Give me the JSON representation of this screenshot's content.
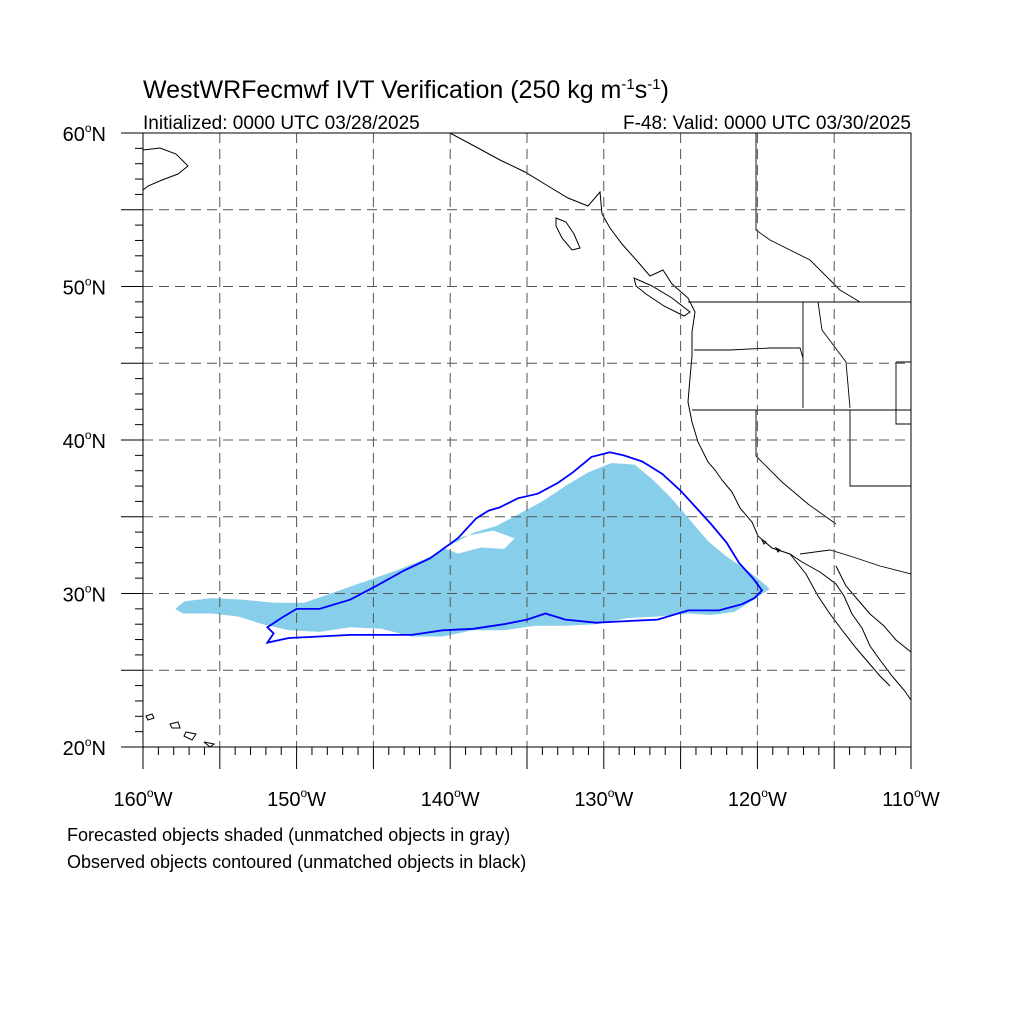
{
  "title": {
    "main": "WestWRFecmwf IVT Verification (250 kg m",
    "sup1": "-1",
    "mid": "s",
    "sup2": "-1",
    "end": ")"
  },
  "subtitle": {
    "left": "Initialized: 0000 UTC 03/28/2025",
    "right": "F-48: Valid: 0000 UTC 03/30/2025"
  },
  "lat_labels": [
    {
      "value": 60,
      "text": "60",
      "deg": "o",
      "hemi": "N"
    },
    {
      "value": 50,
      "text": "50",
      "deg": "o",
      "hemi": "N"
    },
    {
      "value": 40,
      "text": "40",
      "deg": "o",
      "hemi": "N"
    },
    {
      "value": 30,
      "text": "30",
      "deg": "o",
      "hemi": "N"
    },
    {
      "value": 20,
      "text": "20",
      "deg": "o",
      "hemi": "N"
    }
  ],
  "lon_labels": [
    {
      "value": -160,
      "text": "160",
      "deg": "o",
      "hemi": "W"
    },
    {
      "value": -150,
      "text": "150",
      "deg": "o",
      "hemi": "W"
    },
    {
      "value": -140,
      "text": "140",
      "deg": "o",
      "hemi": "W"
    },
    {
      "value": -130,
      "text": "130",
      "deg": "o",
      "hemi": "W"
    },
    {
      "value": -120,
      "text": "120",
      "deg": "o",
      "hemi": "W"
    },
    {
      "value": -110,
      "text": "110",
      "deg": "o",
      "hemi": "W"
    }
  ],
  "extent": {
    "lon_min": -160,
    "lon_max": -110,
    "lat_min": 20,
    "lat_max": 60
  },
  "colors": {
    "forecast_fill": "#87ceeb",
    "observed_contour": "#0000ff",
    "coast": "#000000",
    "grid": "#555555"
  },
  "forecast_object": [
    [
      -157.9,
      29.0
    ],
    [
      -157.3,
      29.5
    ],
    [
      -155.5,
      29.7
    ],
    [
      -153.5,
      29.6
    ],
    [
      -151.5,
      29.4
    ],
    [
      -149.5,
      29.4
    ],
    [
      -147.5,
      30.1
    ],
    [
      -145.5,
      30.8
    ],
    [
      -143.5,
      31.5
    ],
    [
      -141.5,
      32.3
    ],
    [
      -139.9,
      33.2
    ],
    [
      -138.4,
      34.0
    ],
    [
      -137.0,
      34.4
    ],
    [
      -135.5,
      35.2
    ],
    [
      -134.0,
      36.0
    ],
    [
      -132.5,
      37.0
    ],
    [
      -131.0,
      37.9
    ],
    [
      -129.5,
      38.5
    ],
    [
      -128.0,
      38.4
    ],
    [
      -126.8,
      37.4
    ],
    [
      -125.6,
      36.2
    ],
    [
      -124.4,
      34.8
    ],
    [
      -123.2,
      33.4
    ],
    [
      -122.0,
      32.4
    ],
    [
      -120.8,
      31.6
    ],
    [
      -120.0,
      31.0
    ],
    [
      -119.2,
      30.3
    ],
    [
      -120.2,
      29.6
    ],
    [
      -121.5,
      28.8
    ],
    [
      -123.0,
      28.6
    ],
    [
      -124.5,
      28.7
    ],
    [
      -126.5,
      28.5
    ],
    [
      -128.5,
      28.4
    ],
    [
      -130.5,
      28.0
    ],
    [
      -132.5,
      27.9
    ],
    [
      -134.5,
      27.9
    ],
    [
      -136.5,
      27.6
    ],
    [
      -138.5,
      27.6
    ],
    [
      -140.5,
      27.2
    ],
    [
      -142.5,
      27.2
    ],
    [
      -144.5,
      27.7
    ],
    [
      -146.5,
      27.8
    ],
    [
      -148.5,
      27.5
    ],
    [
      -150.5,
      27.6
    ],
    [
      -152.2,
      28.0
    ],
    [
      -153.8,
      28.5
    ],
    [
      -155.5,
      28.7
    ],
    [
      -157.4,
      28.7
    ]
  ],
  "forecast_holes": [
    [
      [
        -139.5,
        32.6
      ],
      [
        -138.0,
        33.0
      ],
      [
        -136.5,
        32.9
      ],
      [
        -135.8,
        33.6
      ],
      [
        -137.2,
        34.1
      ],
      [
        -139.2,
        33.7
      ],
      [
        -140.5,
        33.0
      ]
    ]
  ],
  "observed_object": [
    [
      -151.9,
      27.8
    ],
    [
      -151.0,
      28.4
    ],
    [
      -150.0,
      29.0
    ],
    [
      -148.5,
      29.0
    ],
    [
      -146.5,
      29.6
    ],
    [
      -144.8,
      30.5
    ],
    [
      -143.0,
      31.5
    ],
    [
      -141.3,
      32.3
    ],
    [
      -139.5,
      33.6
    ],
    [
      -138.3,
      34.9
    ],
    [
      -137.5,
      35.4
    ],
    [
      -136.8,
      35.6
    ],
    [
      -135.6,
      36.2
    ],
    [
      -134.3,
      36.5
    ],
    [
      -133.0,
      37.2
    ],
    [
      -132.0,
      37.9
    ],
    [
      -130.8,
      38.9
    ],
    [
      -129.6,
      39.2
    ],
    [
      -128.7,
      39.0
    ],
    [
      -127.5,
      38.6
    ],
    [
      -126.2,
      37.8
    ],
    [
      -125.0,
      36.7
    ],
    [
      -124.0,
      35.6
    ],
    [
      -123.0,
      34.5
    ],
    [
      -122.0,
      33.3
    ],
    [
      -121.2,
      32.0
    ],
    [
      -120.3,
      31.0
    ],
    [
      -119.7,
      30.2
    ],
    [
      -120.2,
      29.7
    ],
    [
      -121.0,
      29.3
    ],
    [
      -122.5,
      28.9
    ],
    [
      -124.5,
      28.9
    ],
    [
      -126.5,
      28.3
    ],
    [
      -128.5,
      28.2
    ],
    [
      -130.5,
      28.1
    ],
    [
      -132.5,
      28.3
    ],
    [
      -133.8,
      28.7
    ],
    [
      -135.0,
      28.3
    ],
    [
      -136.5,
      28.0
    ],
    [
      -138.5,
      27.7
    ],
    [
      -140.5,
      27.6
    ],
    [
      -142.5,
      27.3
    ],
    [
      -144.5,
      27.3
    ],
    [
      -146.5,
      27.3
    ],
    [
      -148.5,
      27.2
    ],
    [
      -150.5,
      27.1
    ],
    [
      -151.9,
      26.8
    ],
    [
      -151.5,
      27.4
    ]
  ]
}
